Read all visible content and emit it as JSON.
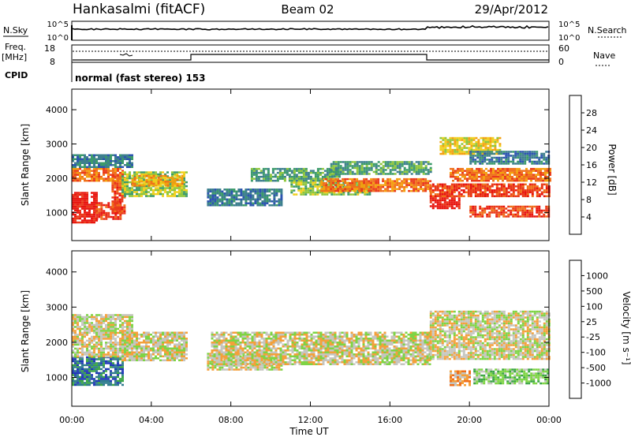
{
  "header": {
    "station": "Hankasalmi (fitACF)",
    "beam": "Beam 02",
    "date": "29/Apr/2012"
  },
  "status_panel": {
    "nsky_label": "N.Sky",
    "nsearch_label": "N.Search",
    "nsky_ticks": [
      "10^5",
      "10^0"
    ],
    "nsearch_ticks": [
      "10^5",
      "10^0"
    ],
    "freq_label": "Freq.",
    "freq_unit": "[MHz]",
    "freq_ticks": [
      "18",
      "8"
    ],
    "nave_label": "Nave",
    "nave_ticks": [
      "60",
      "0"
    ],
    "cpid_label": "CPID",
    "cpid_text": "normal (fast stereo) 153"
  },
  "x_axis": {
    "label": "Time UT",
    "ticks": [
      "00:00",
      "04:00",
      "08:00",
      "12:00",
      "16:00",
      "20:00",
      "00:00"
    ]
  },
  "colors": {
    "power": [
      "#1f25e0",
      "#2d55b0",
      "#3d7f8e",
      "#3c9b6a",
      "#8ec63a",
      "#f0cf1a",
      "#f4a00e",
      "#f0701a",
      "#ea3a1a",
      "#e8160f"
    ],
    "velocity": [
      "#ee1c14",
      "#ef6f1c",
      "#f4a03a",
      "#c5c5bf",
      "#7ed444",
      "#3aa544",
      "#2e7a8e",
      "#2038b8"
    ]
  },
  "chart_data": [
    {
      "type": "heatmap",
      "name": "power",
      "ylabel": "Slant Range [km]",
      "xlim": [
        0,
        24
      ],
      "ylim": [
        180,
        4600
      ],
      "yticks": [
        1000,
        2000,
        3000,
        4000
      ],
      "colorbar": {
        "label": "Power [dB]",
        "ticks": [
          "28",
          "24",
          "20",
          "16",
          "12",
          "8",
          "4"
        ]
      },
      "bands": [
        {
          "t": [
            0.0,
            1.2
          ],
          "r": [
            700,
            1600
          ],
          "level": 9
        },
        {
          "t": [
            1.2,
            2.4
          ],
          "r": [
            800,
            1300
          ],
          "level": 8
        },
        {
          "t": [
            2.0,
            2.6
          ],
          "r": [
            1000,
            2100
          ],
          "level": 8
        },
        {
          "t": [
            0.0,
            2.5
          ],
          "r": [
            1950,
            2300
          ],
          "level": 7
        },
        {
          "t": [
            0.0,
            3.0
          ],
          "r": [
            2300,
            2700
          ],
          "level": 2
        },
        {
          "t": [
            2.5,
            5.8
          ],
          "r": [
            1500,
            2200
          ],
          "level": 4
        },
        {
          "t": [
            3.0,
            5.5
          ],
          "r": [
            1800,
            2100
          ],
          "level": 6
        },
        {
          "t": [
            6.8,
            10.5
          ],
          "r": [
            1200,
            1700
          ],
          "level": 2
        },
        {
          "t": [
            9.0,
            13.5
          ],
          "r": [
            1900,
            2300
          ],
          "level": 3
        },
        {
          "t": [
            11.0,
            15.0
          ],
          "r": [
            1500,
            1900
          ],
          "level": 4
        },
        {
          "t": [
            12.5,
            18.0
          ],
          "r": [
            1650,
            2000
          ],
          "level": 7
        },
        {
          "t": [
            13.0,
            18.0
          ],
          "r": [
            2100,
            2500
          ],
          "level": 3
        },
        {
          "t": [
            18.0,
            19.5
          ],
          "r": [
            1100,
            1500
          ],
          "level": 9
        },
        {
          "t": [
            18.0,
            24.0
          ],
          "r": [
            1500,
            1850
          ],
          "level": 8
        },
        {
          "t": [
            19.0,
            24.0
          ],
          "r": [
            1900,
            2300
          ],
          "level": 7
        },
        {
          "t": [
            18.5,
            21.5
          ],
          "r": [
            2700,
            3200
          ],
          "level": 5
        },
        {
          "t": [
            20.0,
            24.0
          ],
          "r": [
            900,
            1200
          ],
          "level": 8
        },
        {
          "t": [
            20.0,
            24.0
          ],
          "r": [
            2400,
            2800
          ],
          "level": 2
        }
      ]
    },
    {
      "type": "heatmap",
      "name": "velocity",
      "ylabel": "Slant Range [km]",
      "xlim": [
        0,
        24
      ],
      "ylim": [
        180,
        4600
      ],
      "yticks": [
        1000,
        2000,
        3000,
        4000
      ],
      "colorbar": {
        "label": "Velocity [m s⁻¹]",
        "ticks": [
          "1000",
          "500",
          "100",
          "25",
          "-25",
          "-100",
          "-500",
          "-1000"
        ]
      },
      "bands": [
        {
          "t": [
            0.0,
            2.5
          ],
          "r": [
            800,
            1600
          ],
          "level": 6
        },
        {
          "t": [
            0.0,
            3.0
          ],
          "r": [
            1600,
            2800
          ],
          "level": 3
        },
        {
          "t": [
            2.5,
            5.8
          ],
          "r": [
            1500,
            2300
          ],
          "level": 3
        },
        {
          "t": [
            6.8,
            10.5
          ],
          "r": [
            1200,
            1700
          ],
          "level": 3
        },
        {
          "t": [
            7.0,
            18.0
          ],
          "r": [
            1400,
            2300
          ],
          "level": 3
        },
        {
          "t": [
            18.0,
            24.0
          ],
          "r": [
            1500,
            2900
          ],
          "level": 3
        },
        {
          "t": [
            20.2,
            24.0
          ],
          "r": [
            850,
            1250
          ],
          "level": 4
        },
        {
          "t": [
            19.0,
            20.0
          ],
          "r": [
            800,
            1200
          ],
          "level": 2
        }
      ]
    }
  ]
}
